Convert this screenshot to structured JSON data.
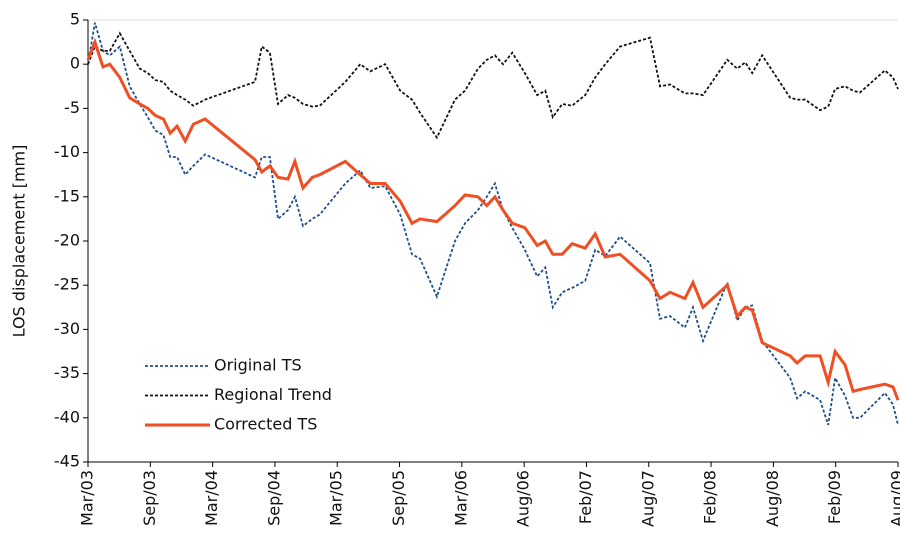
{
  "chart_data": {
    "type": "line",
    "ylabel": "LOS displacement [mm]",
    "xlim": [
      0,
      13
    ],
    "xticks": [
      {
        "value": 0,
        "label": "Mar/03"
      },
      {
        "value": 1,
        "label": "Sep/03"
      },
      {
        "value": 2,
        "label": "Mar/04"
      },
      {
        "value": 3,
        "label": "Sep/04"
      },
      {
        "value": 4,
        "label": "Mar/05"
      },
      {
        "value": 5,
        "label": "Sep/05"
      },
      {
        "value": 6,
        "label": "Mar/06"
      },
      {
        "value": 7,
        "label": "Aug/06"
      },
      {
        "value": 8,
        "label": "Feb/07"
      },
      {
        "value": 9,
        "label": "Aug/07"
      },
      {
        "value": 10,
        "label": "Feb/08"
      },
      {
        "value": 11,
        "label": "Aug/08"
      },
      {
        "value": 12,
        "label": "Feb/09"
      },
      {
        "value": 13,
        "label": "Aug/09"
      }
    ],
    "ylim": [
      -45,
      5
    ],
    "yticks": [
      -45,
      -40,
      -35,
      -30,
      -25,
      -20,
      -15,
      -10,
      -5,
      0,
      5
    ],
    "legend": "lower left",
    "x": [
      0,
      0.11,
      0.24,
      0.35,
      0.51,
      0.67,
      0.83,
      0.96,
      1.08,
      1.21,
      1.32,
      1.43,
      1.56,
      1.69,
      1.88,
      2.68,
      2.79,
      2.92,
      3.05,
      3.21,
      3.32,
      3.45,
      3.6,
      3.72,
      4.13,
      4.37,
      4.53,
      4.77,
      5.01,
      5.2,
      5.33,
      5.6,
      5.89,
      6.05,
      6.26,
      6.4,
      6.53,
      6.66,
      6.81,
      7.01,
      7.21,
      7.34,
      7.46,
      7.61,
      7.77,
      7.98,
      8.14,
      8.3,
      8.54,
      9.02,
      9.18,
      9.34,
      9.58,
      9.71,
      9.87,
      10.26,
      10.42,
      10.55,
      10.66,
      10.82,
      11.27,
      11.38,
      11.51,
      11.75,
      11.88,
      11.99,
      12.15,
      12.28,
      12.39,
      12.79,
      12.92,
      13
    ],
    "series": [
      {
        "name": "Original TS",
        "color": "#1f4e8c",
        "dash": true,
        "values": [
          0,
          4.7,
          1.5,
          1,
          2,
          -2.5,
          -4.5,
          -6,
          -7.5,
          -8,
          -10.5,
          -10.5,
          -12.5,
          -11.5,
          -10.2,
          -12.8,
          -10.5,
          -10.5,
          -17.5,
          -16.5,
          -15,
          -18.3,
          -17.5,
          -17,
          -13.5,
          -12,
          -14,
          -13.8,
          -17,
          -21.5,
          -22,
          -26.3,
          -20,
          -18,
          -16.5,
          -15,
          -13.5,
          -16.5,
          -18.5,
          -21,
          -24,
          -23,
          -27.5,
          -25.8,
          -25.3,
          -24.5,
          -21,
          -21.7,
          -19.5,
          -22.5,
          -28.8,
          -28.5,
          -29.8,
          -27.5,
          -31.3,
          -24.7,
          -29,
          -27.5,
          -27.3,
          -31.3,
          -35.5,
          -37.8,
          -37,
          -38,
          -40.8,
          -35.5,
          -37.5,
          -40,
          -40,
          -37.2,
          -38.5,
          -40.8
        ]
      },
      {
        "name": "Regional Trend",
        "color": "#111111",
        "dash": true,
        "values": [
          0,
          2,
          1.5,
          1.5,
          3.5,
          1.5,
          -0.5,
          -1,
          -1.8,
          -2,
          -3,
          -3.5,
          -4,
          -4.7,
          -4,
          -2,
          2,
          1.3,
          -4.5,
          -3.5,
          -3.8,
          -4.5,
          -4.8,
          -4.7,
          -2,
          0,
          -0.8,
          0,
          -3,
          -4,
          -5.5,
          -8.3,
          -4,
          -3,
          -0.5,
          0.5,
          1,
          0,
          1.3,
          -1,
          -3.5,
          -3,
          -6,
          -4.5,
          -4.7,
          -3.5,
          -1.5,
          0,
          2,
          3,
          -2.5,
          -2.3,
          -3.3,
          -3.3,
          -3.5,
          0.5,
          -0.5,
          0.2,
          -1,
          1,
          -3.8,
          -4,
          -4,
          -5.2,
          -4.8,
          -2.8,
          -2.5,
          -3,
          -3.2,
          -0.7,
          -1.5,
          -2.8
        ]
      },
      {
        "name": "Corrected TS",
        "color": "#f04e23",
        "dash": false,
        "values": [
          0.5,
          2.5,
          -0.3,
          0,
          -1.5,
          -3.8,
          -4.5,
          -5,
          -5.8,
          -6.2,
          -7.8,
          -7,
          -8.7,
          -6.8,
          -6.2,
          -10.8,
          -12.2,
          -11.5,
          -12.8,
          -13,
          -11,
          -14,
          -12.8,
          -12.5,
          -11,
          -12.5,
          -13.5,
          -13.5,
          -15.5,
          -18,
          -17.5,
          -17.8,
          -16,
          -14.8,
          -15,
          -16,
          -15,
          -16.5,
          -18,
          -18.5,
          -20.5,
          -20,
          -21.5,
          -21.5,
          -20.3,
          -20.8,
          -19.2,
          -21.8,
          -21.5,
          -24.5,
          -26.5,
          -25.8,
          -26.5,
          -24.7,
          -27.5,
          -25,
          -28.5,
          -27.5,
          -27.8,
          -31.5,
          -33,
          -33.8,
          -33,
          -33,
          -36,
          -32.5,
          -34,
          -37,
          -36.8,
          -36.2,
          -36.5,
          -38
        ]
      }
    ]
  }
}
